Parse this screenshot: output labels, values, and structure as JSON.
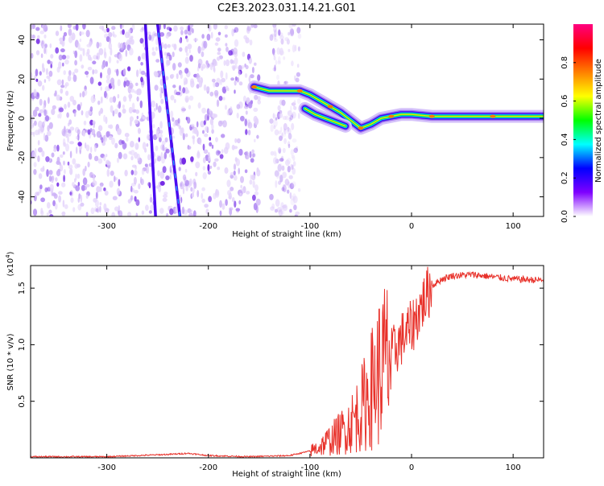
{
  "title": "C2E3.2023.031.14.21.G01",
  "chart_data": [
    {
      "type": "heatmap",
      "xlabel": "Height of straight line (km)",
      "ylabel": "Frequency (Hz)",
      "xlim": [
        -375,
        130
      ],
      "ylim": [
        -50,
        48
      ],
      "xticks": [
        -300,
        -200,
        -100,
        0,
        100
      ],
      "yticks": [
        -40,
        -20,
        0,
        20,
        40
      ],
      "colorbar": {
        "label": "Normalized spectral amplitude",
        "range": [
          0,
          1
        ],
        "ticks": [
          0.0,
          0.2,
          0.4,
          0.6,
          0.8
        ],
        "colors": [
          "#ffffff",
          "#7f00ff",
          "#0000ff",
          "#00ffff",
          "#00ff00",
          "#ffff00",
          "#ff8000",
          "#ff0000",
          "#ff0080"
        ]
      },
      "ridge": {
        "x": [
          -155,
          -140,
          -120,
          -110,
          -100,
          -90,
          -80,
          -70,
          -60,
          -50,
          -40,
          -30,
          -20,
          -10,
          0,
          20,
          40,
          60,
          80,
          100,
          130
        ],
        "y": [
          16,
          14,
          14,
          14,
          12,
          9,
          6,
          3,
          -1,
          -5,
          -3,
          0,
          1,
          2,
          2,
          1,
          1,
          1,
          1,
          1,
          1
        ]
      },
      "lower_branch": {
        "x": [
          -105,
          -95,
          -85,
          -75,
          -65
        ],
        "y": [
          5,
          2,
          0,
          -2,
          -4
        ]
      },
      "streaks": [
        {
          "x": [
            -252,
            -262
          ],
          "y": [
            -50,
            48
          ]
        },
        {
          "x": [
            -228,
            -250
          ],
          "y": [
            -50,
            48
          ]
        }
      ],
      "noise_extent": [
        -375,
        -110
      ]
    },
    {
      "type": "line",
      "xlabel": "Height of straight line (km)",
      "ylabel": "SNR (10 * v/v)",
      "yscale_label": "(x10",
      "yscale_exp": "4",
      "yscale_close": ")",
      "xlim": [
        -375,
        130
      ],
      "ylim": [
        0,
        1.7
      ],
      "xticks": [
        -300,
        -200,
        -100,
        0,
        100
      ],
      "yticks": [
        0.5,
        1.0,
        1.5
      ],
      "ytick_labels": [
        "0.5",
        "1.0",
        "1.5"
      ],
      "series": [
        {
          "color": "#e8312a",
          "x": [
            -375,
            -300,
            -240,
            -220,
            -200,
            -160,
            -120,
            -100,
            -90,
            -80,
            -70,
            -60,
            -50,
            -40,
            -30,
            -20,
            -10,
            0,
            10,
            20,
            30,
            40,
            60,
            80,
            100,
            130
          ],
          "y": [
            0.01,
            0.01,
            0.03,
            0.04,
            0.02,
            0.01,
            0.02,
            0.06,
            0.1,
            0.16,
            0.22,
            0.3,
            0.42,
            0.6,
            0.8,
            0.9,
            1.05,
            1.15,
            1.35,
            1.52,
            1.58,
            1.61,
            1.62,
            1.6,
            1.58,
            1.57
          ]
        }
      ]
    }
  ]
}
